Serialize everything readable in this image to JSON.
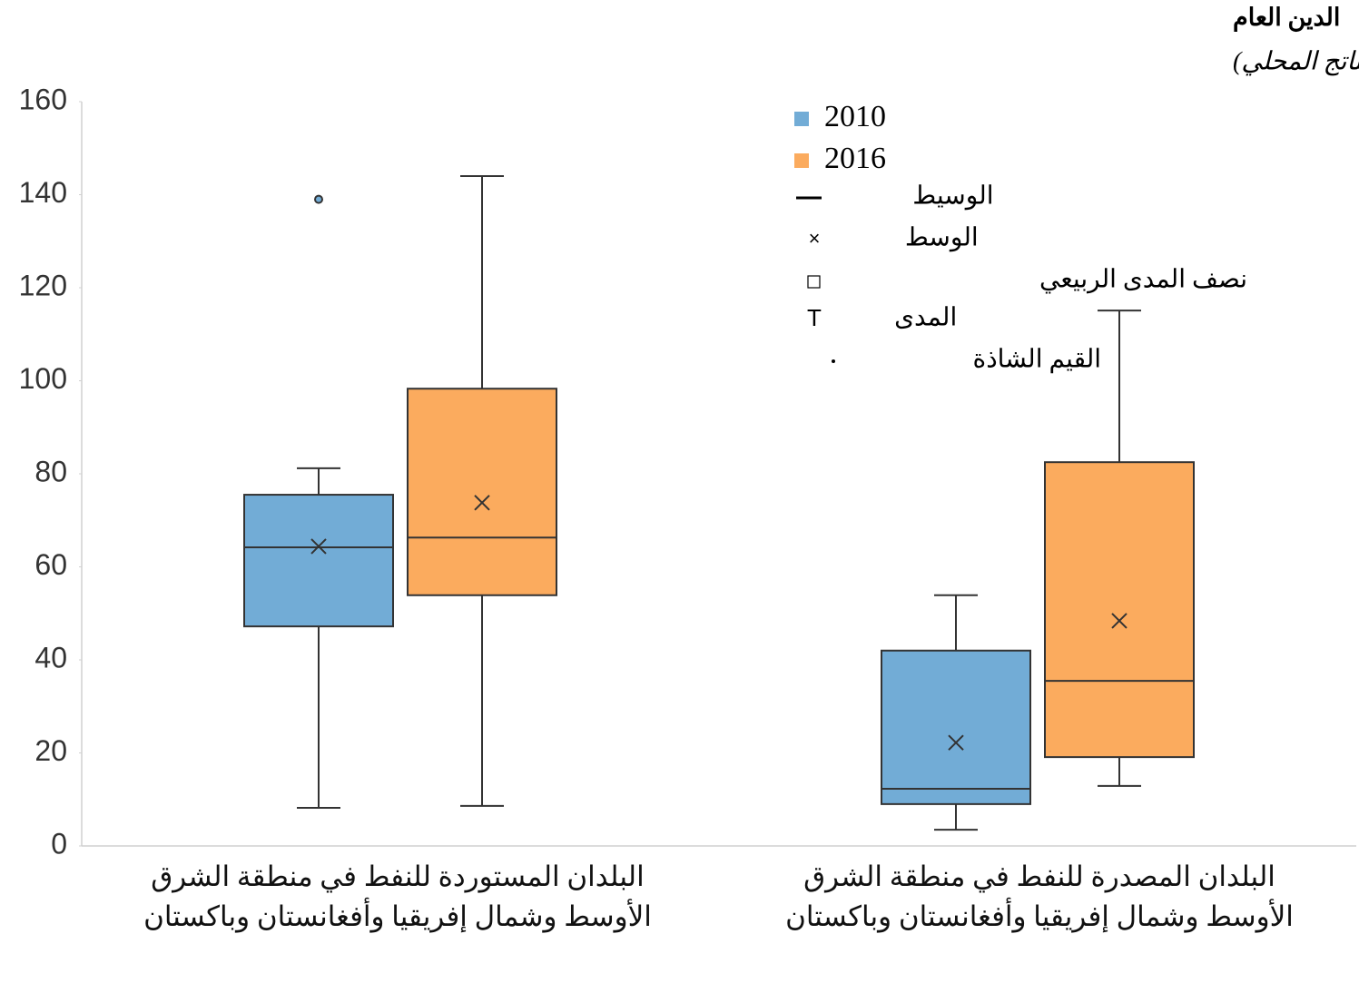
{
  "chart_data": {
    "type": "box",
    "title": "الدين العام",
    "subtitle": "(% من إجمالي الناتج المحلي)",
    "categories": [
      "البلدان المستوردة للنفط في منطقة الشرق الأوسط وشمال إفريقيا وأفغانستان وباكستان",
      "البلدان المصدرة للنفط في منطقة الشرق الأوسط وشمال إفريقيا وأفغانستان وباكستان"
    ],
    "series": [
      {
        "name": "2010",
        "color": "#72acd6",
        "boxes": [
          {
            "min": 8.2,
            "q1": 47.2,
            "median": 64.2,
            "q3": 75.5,
            "max": 81.2,
            "mean": 64.4,
            "outliers": [
              139
            ]
          },
          {
            "min": 3.5,
            "q1": 9,
            "median": 12.3,
            "q3": 42,
            "max": 53.9,
            "mean": 22.2,
            "outliers": []
          }
        ]
      },
      {
        "name": "2016",
        "color": "#fbab5e",
        "boxes": [
          {
            "min": 8.6,
            "q1": 53.9,
            "median": 66.3,
            "q3": 98.3,
            "max": 144,
            "mean": 73.8,
            "outliers": []
          },
          {
            "min": 12.9,
            "q1": 19.1,
            "median": 35.5,
            "q3": 82.5,
            "max": 115.1,
            "mean": 48.4,
            "outliers": []
          }
        ]
      }
    ],
    "legend_items": [
      "الوسيط",
      "الوسط",
      "نصف المدى الربيعي",
      "المدى",
      "القيم الشاذة"
    ],
    "ylim": [
      0,
      160
    ],
    "yticks": [
      0,
      20,
      40,
      60,
      80,
      100,
      120,
      140,
      160
    ]
  }
}
